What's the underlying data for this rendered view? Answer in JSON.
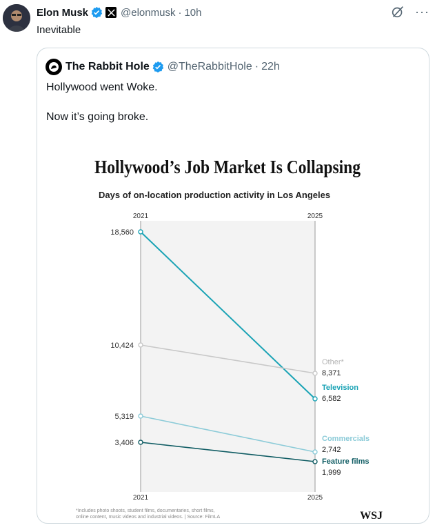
{
  "tweet": {
    "author_name": "Elon Musk",
    "handle": "@elonmusk",
    "separator": "·",
    "time": "10h",
    "text": "Inevitable"
  },
  "quote": {
    "author_name": "The Rabbit Hole",
    "handle": "@TheRabbitHole",
    "separator": "·",
    "time": "22h",
    "text_line1": "Hollywood went Woke.",
    "text_line2": "Now it’s going broke."
  },
  "colors": {
    "verified": "#1d9bf0",
    "television": "#1aa3b5",
    "other": "#c8c8c8",
    "commercials": "#8ccbd8",
    "feature_films": "#0f5c63",
    "panel": "#f3f3f3"
  },
  "chart_data": {
    "type": "line",
    "title": "Hollywood’s Job Market Is Collapsing",
    "subtitle": "Days of on-location production activity in Los Angeles",
    "x": [
      "2021",
      "2025"
    ],
    "ylim": [
      0,
      18560
    ],
    "series": [
      {
        "name": "Television",
        "label": "Television",
        "values": [
          18560,
          6582
        ],
        "value_labels": [
          "18,560",
          "6,582"
        ]
      },
      {
        "name": "Other",
        "label": "Other*",
        "values": [
          10424,
          8371
        ],
        "value_labels": [
          "10,424",
          "8,371"
        ]
      },
      {
        "name": "Commercials",
        "label": "Commercials",
        "values": [
          5319,
          2742
        ],
        "value_labels": [
          "5,319",
          "2,742"
        ]
      },
      {
        "name": "Feature films",
        "label": "Feature films",
        "values": [
          3406,
          1999
        ],
        "value_labels": [
          "3,406",
          "1,999"
        ]
      }
    ],
    "footnote_line1": "*Includes photo shoots, student films, documentaries, short films,",
    "footnote_line2": "online content, music videos and industrial videos. | Source: FilmLA",
    "source_mark": "WSJ"
  }
}
